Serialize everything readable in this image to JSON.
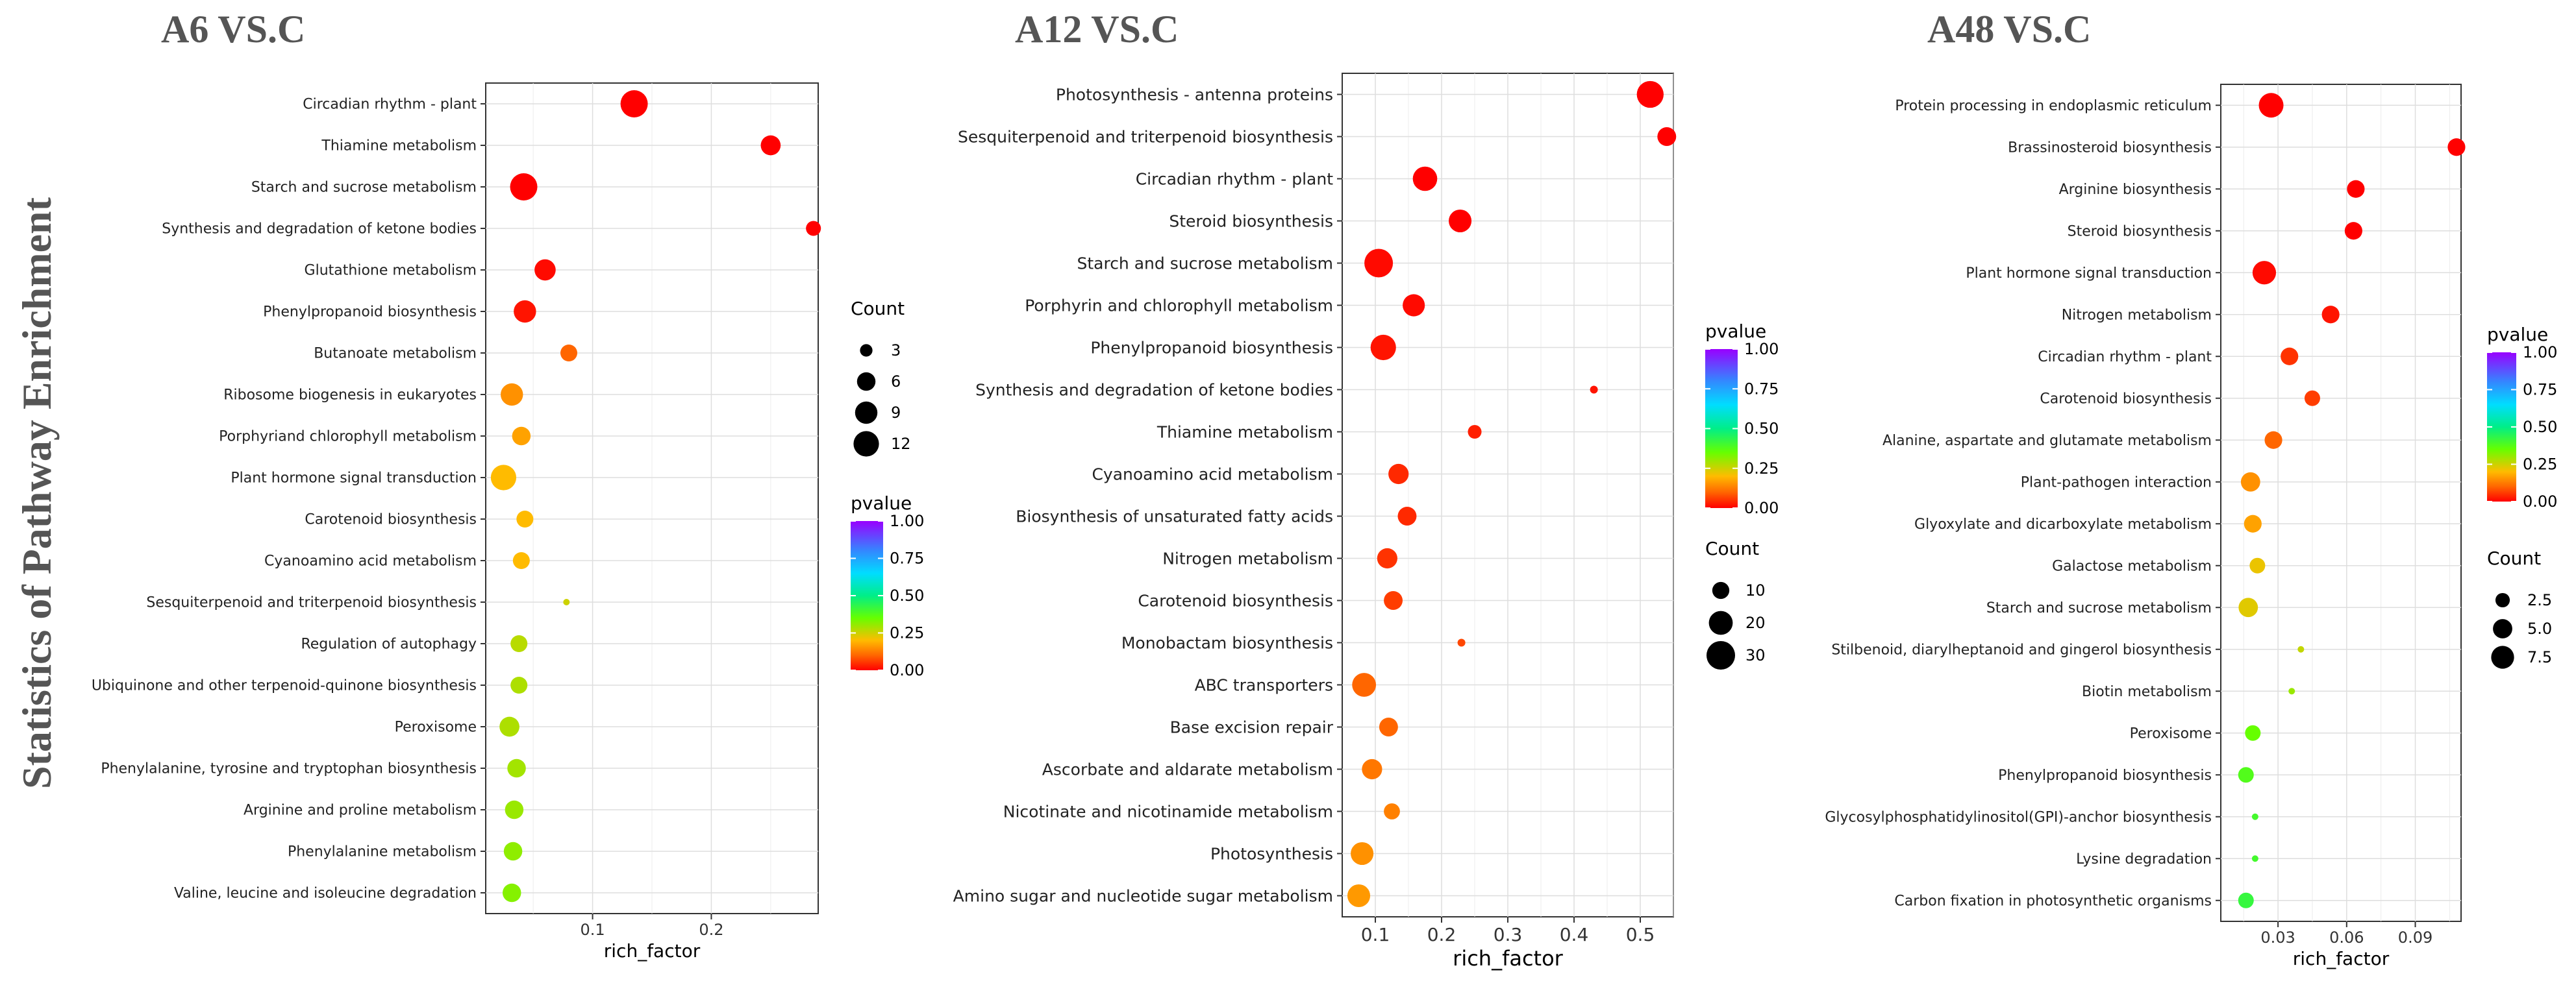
{
  "side_title": "Statistics of Pathway Enrichment",
  "chart_data": [
    {
      "type": "scatter",
      "title": "A6 VS.C",
      "xlabel": "rich_factor",
      "ylabel": "",
      "xlim": [
        0.01,
        0.29
      ],
      "xticks": [
        0.1,
        0.2
      ],
      "xtick_labels": [
        "0.1",
        "0.2"
      ],
      "grid": true,
      "categories": [
        "Circadian rhythm - plant",
        "Thiamine metabolism",
        "Starch and sucrose metabolism",
        "Synthesis and degradation of ketone bodies",
        "Glutathione metabolism",
        "Phenylpropanoid biosynthesis",
        "Butanoate metabolism",
        "Ribosome biogenesis in eukaryotes",
        "Porphyriand chlorophyll metabolism",
        "Plant hormone signal transduction",
        "Carotenoid biosynthesis",
        "Cyanoamino acid metabolism",
        "Sesquiterpenoid and triterpenoid biosynthesis",
        "Regulation of autophagy",
        "Ubiquinone and other terpenoid-quinone biosynthesis",
        "Peroxisome",
        "Phenylalanine, tyrosine and tryptophan biosynthesis",
        "Arginine and proline metabolism",
        "Phenylalanine metabolism",
        "Valine, leucine and isoleucine degradation"
      ],
      "x": [
        0.135,
        0.25,
        0.042,
        0.286,
        0.06,
        0.043,
        0.08,
        0.032,
        0.04,
        0.025,
        0.043,
        0.04,
        0.078,
        0.038,
        0.038,
        0.03,
        0.036,
        0.034,
        0.033,
        0.032
      ],
      "count": [
        14,
        7,
        14,
        4,
        8,
        9,
        5,
        9,
        6,
        12,
        5,
        5,
        2,
        5,
        5,
        7,
        6,
        6,
        6,
        6
      ],
      "pvalue": [
        0.0,
        0.0,
        0.0,
        0.0,
        0.01,
        0.02,
        0.1,
        0.15,
        0.17,
        0.2,
        0.2,
        0.2,
        0.25,
        0.27,
        0.28,
        0.28,
        0.29,
        0.3,
        0.31,
        0.32
      ],
      "legends": [
        {
          "title": "Count",
          "type": "size",
          "values": [
            3,
            6,
            9,
            12
          ],
          "labels": [
            "3",
            "6",
            "9",
            "12"
          ]
        },
        {
          "title": "pvalue",
          "type": "color",
          "ticks": [
            1.0,
            0.75,
            0.5,
            0.25,
            0.0
          ],
          "labels": [
            "1.00",
            "0.75",
            "0.50",
            "0.25",
            "0.00"
          ]
        }
      ]
    },
    {
      "type": "scatter",
      "title": "A12 VS.C",
      "xlabel": "rich_factor",
      "ylabel": "",
      "xlim": [
        0.05,
        0.55
      ],
      "xticks": [
        0.1,
        0.2,
        0.3,
        0.4,
        0.5
      ],
      "xtick_labels": [
        "0.1",
        "0.2",
        "0.3",
        "0.4",
        "0.5"
      ],
      "grid": true,
      "categories": [
        "Photosynthesis - antenna proteins",
        "Sesquiterpenoid and triterpenoid biosynthesis",
        "Circadian rhythm - plant",
        "Steroid biosynthesis",
        "Starch and sucrose metabolism",
        "Porphyrin and chlorophyll metabolism",
        "Phenylpropanoid biosynthesis",
        "Synthesis and degradation of ketone bodies",
        "Thiamine metabolism",
        "Cyanoamino acid metabolism",
        "Biosynthesis of unsaturated fatty acids",
        "Nitrogen metabolism",
        "Carotenoid biosynthesis",
        "Monobactam biosynthesis",
        "ABC transporters",
        "Base excision repair",
        "Ascorbate and aldarate metabolism",
        "Nicotinate and nicotinamide metabolism",
        "Photosynthesis",
        "Amino sugar and nucleotide sugar metabolism"
      ],
      "x": [
        0.515,
        0.54,
        0.175,
        0.228,
        0.105,
        0.158,
        0.112,
        0.43,
        0.25,
        0.135,
        0.148,
        0.118,
        0.127,
        0.23,
        0.083,
        0.12,
        0.095,
        0.125,
        0.08,
        0.075
      ],
      "count": [
        26,
        12,
        21,
        18,
        30,
        17,
        23,
        5,
        7,
        14,
        12,
        14,
        12,
        5,
        20,
        12,
        14,
        9,
        18,
        18
      ],
      "pvalue": [
        0.0,
        0.0,
        0.0,
        0.0,
        0.01,
        0.01,
        0.02,
        0.02,
        0.03,
        0.04,
        0.04,
        0.05,
        0.06,
        0.07,
        0.1,
        0.1,
        0.12,
        0.13,
        0.15,
        0.16
      ],
      "legends": [
        {
          "title": "pvalue",
          "type": "color",
          "ticks": [
            1.0,
            0.75,
            0.5,
            0.25,
            0.0
          ],
          "labels": [
            "1.00",
            "0.75",
            "0.50",
            "0.25",
            "0.00"
          ]
        },
        {
          "title": "Count",
          "type": "size",
          "values": [
            10,
            20,
            30
          ],
          "labels": [
            "10",
            "20",
            "30"
          ]
        }
      ]
    },
    {
      "type": "scatter",
      "title": "A48 VS.C",
      "xlabel": "rich_factor",
      "ylabel": "",
      "xlim": [
        0.005,
        0.11
      ],
      "xticks": [
        0.03,
        0.06,
        0.09
      ],
      "xtick_labels": [
        "0.03",
        "0.06",
        "0.09"
      ],
      "grid": true,
      "categories": [
        "Protein processing in endoplasmic reticulum",
        "Brassinosteroid biosynthesis",
        "Arginine biosynthesis",
        "Steroid biosynthesis",
        "Plant hormone signal transduction",
        "Nitrogen metabolism",
        "Circadian rhythm - plant",
        "Carotenoid biosynthesis",
        "Alanine, aspartate and glutamate metabolism",
        "Plant-pathogen interaction",
        "Glyoxylate and dicarboxylate metabolism",
        "Galactose metabolism",
        "Starch and sucrose metabolism",
        "Stilbenoid, diarylheptanoid and gingerol biosynthesis",
        "Biotin metabolism",
        "Peroxisome",
        "Phenylpropanoid biosynthesis",
        "Glycosylphosphatidylinositol(GPI)-anchor biosynthesis",
        "Lysine degradation",
        "Carbon fixation in photosynthetic organisms"
      ],
      "x": [
        0.027,
        0.108,
        0.064,
        0.063,
        0.024,
        0.053,
        0.035,
        0.045,
        0.028,
        0.018,
        0.019,
        0.021,
        0.017,
        0.04,
        0.036,
        0.019,
        0.016,
        0.02,
        0.02,
        0.016
      ],
      "count": [
        9,
        4,
        4,
        4,
        8,
        4,
        4,
        3,
        4,
        5,
        4,
        3,
        5,
        1,
        1,
        3,
        3,
        1,
        1,
        3
      ],
      "pvalue": [
        0.0,
        0.0,
        0.0,
        0.0,
        0.01,
        0.02,
        0.05,
        0.06,
        0.1,
        0.15,
        0.17,
        0.22,
        0.23,
        0.26,
        0.3,
        0.35,
        0.38,
        0.4,
        0.4,
        0.42
      ],
      "legends": [
        {
          "title": "pvalue",
          "type": "color",
          "ticks": [
            1.0,
            0.75,
            0.5,
            0.25,
            0.0
          ],
          "labels": [
            "1.00",
            "0.75",
            "0.50",
            "0.25",
            "0.00"
          ]
        },
        {
          "title": "Count",
          "type": "size",
          "values": [
            2.5,
            5.0,
            7.5
          ],
          "labels": [
            "2.5",
            "5.0",
            "7.5"
          ]
        }
      ]
    }
  ]
}
